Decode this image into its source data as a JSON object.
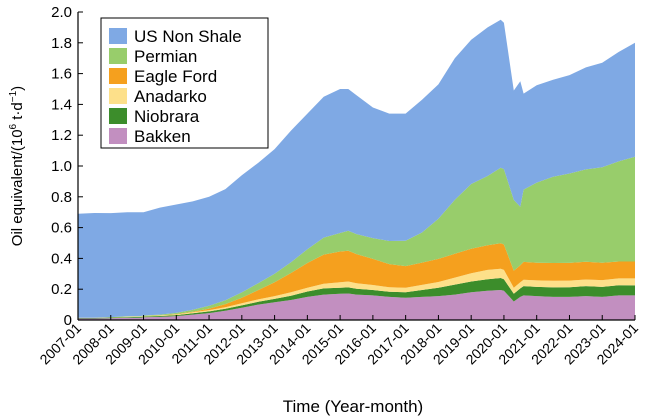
{
  "chart_data": {
    "type": "area",
    "stacked": true,
    "xlabel": "Time (Year-month)",
    "ylabel_prefix": "Oil equivalent/(10",
    "ylabel_exp1": "6",
    "ylabel_mid": " t·d",
    "ylabel_exp2": "−1",
    "ylabel_suffix": ")",
    "ylim": [
      0,
      2.0
    ],
    "yticks": [
      "0",
      "0.2",
      "0.4",
      "0.6",
      "0.8",
      "1.0",
      "1.2",
      "1.4",
      "1.6",
      "1.8",
      "2.0"
    ],
    "xlim": [
      2007.0,
      2024.0
    ],
    "xticks": [
      "2007-01",
      "2008-01",
      "2009-01",
      "2010-01",
      "2011-01",
      "2012-01",
      "2013-01",
      "2014-01",
      "2015-01",
      "2016-01",
      "2017-01",
      "2018-01",
      "2019-01",
      "2020-01",
      "2021-01",
      "2022-01",
      "2023-01",
      "2024-01"
    ],
    "legend_position": "top-left",
    "legend": [
      "US Non Shale",
      "Permian",
      "Eagle Ford",
      "Anadarko",
      "Niobrara",
      "Bakken"
    ],
    "colors": {
      "bakken": "#c28fc0",
      "niobrara": "#3c8d2b",
      "anadarko": "#fde08a",
      "eagle_ford": "#f5a01e",
      "permian": "#98cd6b",
      "us_non_shale": "#7fa9e4"
    },
    "x": [
      2007.0,
      2007.5,
      2008.0,
      2008.5,
      2008.9,
      2009.0,
      2009.5,
      2010.0,
      2010.5,
      2011.0,
      2011.5,
      2012.0,
      2012.5,
      2013.0,
      2013.5,
      2014.0,
      2014.5,
      2015.0,
      2015.25,
      2015.5,
      2016.0,
      2016.5,
      2017.0,
      2017.5,
      2018.0,
      2018.5,
      2019.0,
      2019.5,
      2019.9,
      2020.0,
      2020.3,
      2020.5,
      2020.6,
      2021.0,
      2021.5,
      2022.0,
      2022.5,
      2023.0,
      2023.5,
      2024.0
    ],
    "series": [
      {
        "name": "Bakken",
        "values": [
          0.01,
          0.01,
          0.012,
          0.014,
          0.015,
          0.018,
          0.02,
          0.025,
          0.035,
          0.045,
          0.06,
          0.08,
          0.1,
          0.115,
          0.13,
          0.15,
          0.165,
          0.17,
          0.172,
          0.165,
          0.16,
          0.15,
          0.145,
          0.15,
          0.155,
          0.165,
          0.18,
          0.19,
          0.195,
          0.19,
          0.12,
          0.15,
          0.16,
          0.155,
          0.15,
          0.15,
          0.155,
          0.15,
          0.16,
          0.16
        ]
      },
      {
        "name": "Niobrara",
        "values": [
          0.003,
          0.003,
          0.004,
          0.005,
          0.005,
          0.005,
          0.006,
          0.007,
          0.009,
          0.011,
          0.013,
          0.015,
          0.018,
          0.022,
          0.028,
          0.035,
          0.04,
          0.04,
          0.04,
          0.038,
          0.035,
          0.033,
          0.035,
          0.045,
          0.055,
          0.065,
          0.07,
          0.075,
          0.078,
          0.075,
          0.05,
          0.055,
          0.06,
          0.06,
          0.062,
          0.063,
          0.065,
          0.065,
          0.066,
          0.065
        ]
      },
      {
        "name": "Anadarko",
        "values": [
          0.002,
          0.002,
          0.002,
          0.003,
          0.003,
          0.003,
          0.003,
          0.004,
          0.006,
          0.008,
          0.01,
          0.014,
          0.016,
          0.018,
          0.022,
          0.025,
          0.03,
          0.035,
          0.038,
          0.035,
          0.032,
          0.03,
          0.03,
          0.033,
          0.037,
          0.045,
          0.053,
          0.06,
          0.06,
          0.06,
          0.04,
          0.04,
          0.042,
          0.042,
          0.043,
          0.043,
          0.043,
          0.044,
          0.044,
          0.045
        ]
      },
      {
        "name": "Eagle Ford",
        "values": [
          0.0,
          0.0,
          0.0,
          0.0,
          0.0,
          0.0,
          0.001,
          0.002,
          0.004,
          0.01,
          0.02,
          0.035,
          0.06,
          0.09,
          0.125,
          0.16,
          0.19,
          0.2,
          0.2,
          0.19,
          0.17,
          0.15,
          0.14,
          0.145,
          0.15,
          0.155,
          0.16,
          0.16,
          0.165,
          0.165,
          0.11,
          0.11,
          0.115,
          0.115,
          0.115,
          0.115,
          0.115,
          0.113,
          0.11,
          0.11
        ]
      },
      {
        "name": "Permian",
        "values": [
          0.0,
          0.0,
          0.001,
          0.002,
          0.002,
          0.003,
          0.005,
          0.008,
          0.012,
          0.018,
          0.025,
          0.035,
          0.045,
          0.055,
          0.07,
          0.09,
          0.11,
          0.12,
          0.13,
          0.13,
          0.135,
          0.15,
          0.165,
          0.195,
          0.26,
          0.35,
          0.42,
          0.45,
          0.49,
          0.49,
          0.46,
          0.38,
          0.47,
          0.52,
          0.56,
          0.58,
          0.6,
          0.62,
          0.65,
          0.68
        ]
      },
      {
        "name": "US Non Shale",
        "values": [
          0.675,
          0.68,
          0.675,
          0.676,
          0.675,
          0.671,
          0.695,
          0.704,
          0.704,
          0.708,
          0.722,
          0.761,
          0.781,
          0.81,
          0.855,
          0.88,
          0.915,
          0.935,
          0.92,
          0.902,
          0.848,
          0.827,
          0.825,
          0.862,
          0.873,
          0.92,
          0.937,
          0.965,
          0.962,
          0.95,
          0.71,
          0.815,
          0.623,
          0.633,
          0.63,
          0.639,
          0.662,
          0.678,
          0.71,
          0.74
        ]
      }
    ]
  }
}
